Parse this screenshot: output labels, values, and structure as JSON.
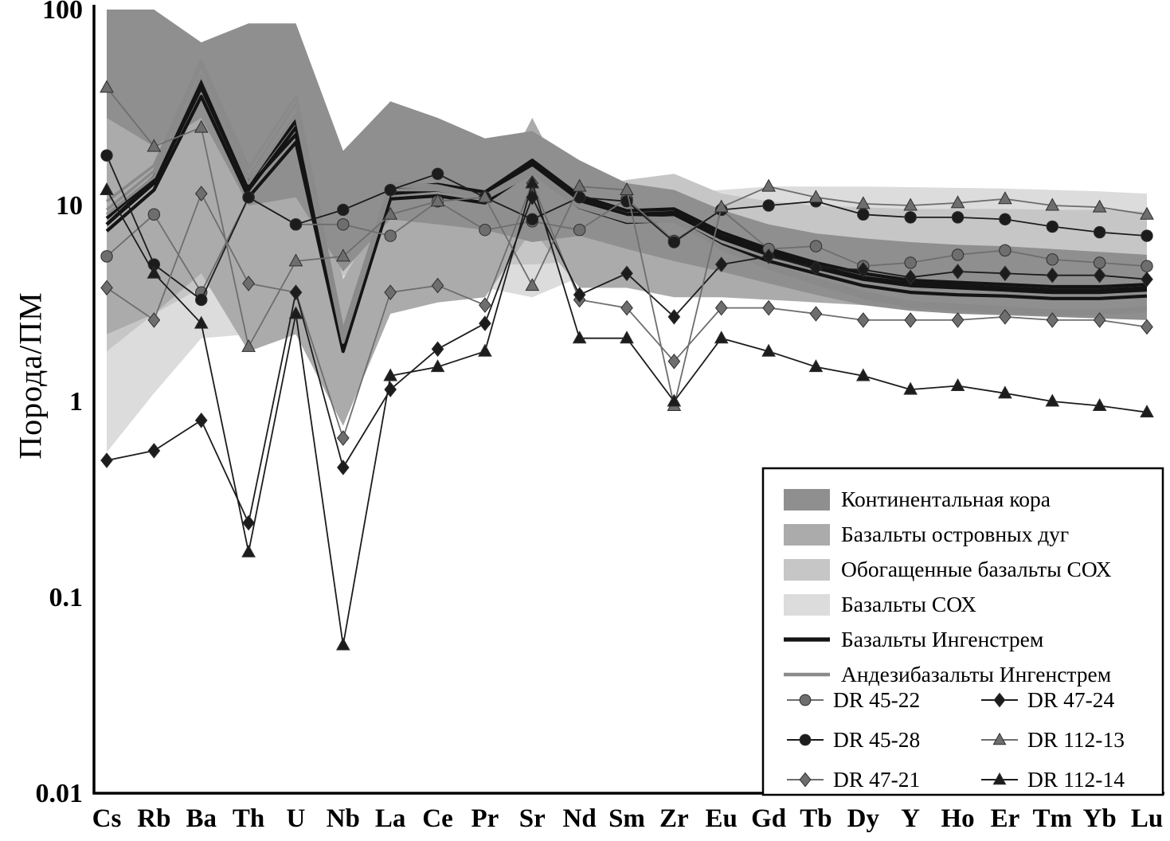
{
  "chart_data": {
    "type": "line",
    "subtype": "spider-diagram",
    "scale": "log",
    "ylabel": "Порода/ПМ",
    "xlabel": "",
    "title": "",
    "ylim": [
      0.01,
      100
    ],
    "grid": false,
    "legend_position": "bottom-right-inside",
    "yticks": [
      {
        "label": "100",
        "value": 100
      },
      {
        "label": "10",
        "value": 10
      },
      {
        "label": "1",
        "value": 1
      },
      {
        "label": "0.1",
        "value": 0.1
      },
      {
        "label": "0.01",
        "value": 0.01
      }
    ],
    "categories": [
      "Cs",
      "Rb",
      "Ba",
      "Th",
      "U",
      "Nb",
      "La",
      "Ce",
      "Pr",
      "Sr",
      "Nd",
      "Sm",
      "Zr",
      "Eu",
      "Gd",
      "Tb",
      "Dy",
      "Y",
      "Ho",
      "Er",
      "Tm",
      "Yb",
      "Lu"
    ],
    "fields": [
      {
        "name": "Континентальная кора",
        "color": "#8f8f8f",
        "upper": [
          120,
          100,
          68,
          85,
          85,
          19,
          34,
          28,
          22,
          24,
          17,
          13,
          12,
          9.5,
          8,
          7.2,
          6.8,
          6.5,
          6.3,
          6.2,
          6.0,
          5.8,
          5.6
        ],
        "lower": [
          28,
          20,
          28,
          10,
          11,
          4.6,
          8.5,
          8,
          7.5,
          6.5,
          7,
          6,
          5.2,
          4.6,
          4,
          3.5,
          3.1,
          2.9,
          2.8,
          2.75,
          2.7,
          2.65,
          2.6
        ]
      },
      {
        "name": "Базальты островных дуг",
        "color": "#ababab",
        "upper": [
          38,
          36,
          45,
          40,
          38,
          4.2,
          11,
          10,
          9.5,
          28,
          9.5,
          8,
          7.5,
          7,
          6.5,
          6,
          5.8,
          5.6,
          5.5,
          5.5,
          5.4,
          5.4,
          5.3
        ],
        "lower": [
          2.2,
          2.8,
          4.5,
          1.8,
          2.2,
          0.75,
          2.8,
          3.2,
          3.4,
          7.5,
          3.8,
          3.8,
          3.4,
          3.4,
          3.3,
          3.2,
          3.1,
          3.05,
          3.0,
          3.0,
          3.0,
          3.0,
          3.0
        ]
      },
      {
        "name": "Обогащенные базальты СОХ",
        "color": "#c6c6c6",
        "upper": [
          42,
          30,
          24,
          16,
          14,
          12,
          13,
          12.5,
          11.5,
          13.5,
          12,
          13.5,
          14.5,
          11.5,
          10.5,
          10,
          9.8,
          9.6,
          9.6,
          9.6,
          9.5,
          9.5,
          9.3
        ],
        "lower": [
          1.8,
          2.8,
          3.8,
          3.8,
          4,
          4.4,
          4.8,
          5,
          5,
          5,
          5.2,
          5.4,
          5.4,
          5.5,
          5.6,
          5.6,
          5.6,
          5.6,
          5.6,
          5.6,
          5.6,
          5.6,
          5.6
        ]
      },
      {
        "name": "Базальты СОХ",
        "color": "#dcdcdc",
        "upper": [
          34,
          24,
          14,
          11,
          10,
          8,
          7.5,
          8,
          8.5,
          9,
          9.5,
          10.5,
          11.5,
          12,
          12.5,
          12.5,
          12.5,
          12.4,
          12.3,
          12.2,
          12,
          11.8,
          11.5
        ],
        "lower": [
          0.55,
          1.1,
          2.1,
          2.2,
          2.4,
          2.6,
          3.0,
          3.4,
          3.8,
          3.4,
          4.3,
          4.8,
          4.9,
          5.2,
          5.8,
          5.9,
          6.0,
          6.0,
          6.0,
          6.0,
          6.0,
          5.9,
          5.9
        ]
      }
    ],
    "line_groups": [
      {
        "name": "Базальты Ингенстрем",
        "color": "#141414",
        "width": 4.2,
        "lines": [
          [
            8,
            13,
            40,
            12,
            25,
            2,
            11.5,
            12,
            11,
            16,
            10.5,
            8.8,
            9,
            6.8,
            5.6,
            4.8,
            4.2,
            3.9,
            3.8,
            3.7,
            3.6,
            3.6,
            3.7
          ],
          [
            7.4,
            12,
            36,
            11,
            21,
            1.8,
            10.8,
            11.2,
            10.3,
            15,
            9.8,
            8.2,
            8.4,
            6.3,
            5.2,
            4.5,
            3.9,
            3.6,
            3.5,
            3.45,
            3.35,
            3.35,
            3.45
          ],
          [
            8.6,
            14,
            44,
            13,
            27,
            2.2,
            12.2,
            12.8,
            11.7,
            17,
            11.2,
            9.4,
            9.6,
            7.3,
            6.0,
            5.1,
            4.5,
            4.15,
            4.05,
            3.95,
            3.85,
            3.85,
            3.95
          ],
          [
            8,
            13.5,
            41,
            12.5,
            23,
            1.9,
            11.8,
            12.3,
            11.2,
            16.5,
            10.8,
            9.0,
            9.2,
            7.0,
            5.8,
            4.9,
            4.3,
            4.0,
            3.9,
            3.8,
            3.7,
            3.7,
            3.8
          ]
        ]
      },
      {
        "name": "Андезибазальты Ингенстрем",
        "color": "#8a8a8a",
        "width": 3.6,
        "lines": [
          [
            9.5,
            15,
            52,
            14,
            33,
            2.1,
            12.5,
            12.3,
            11,
            15,
            10,
            8.5,
            8.5,
            6.2,
            5.0,
            4.2,
            3.6,
            3.2,
            3.1,
            3.0,
            2.9,
            2.9,
            3.0
          ],
          [
            10.5,
            16,
            55,
            15.5,
            36,
            2.3,
            13,
            12.6,
            11.2,
            15.5,
            10.2,
            8.7,
            8.6,
            6.0,
            4.8,
            4.0,
            3.4,
            3.05,
            2.95,
            2.85,
            2.8,
            2.8,
            2.9
          ],
          [
            9,
            14,
            46,
            13,
            29,
            2.0,
            12,
            12,
            10.8,
            14.5,
            9.8,
            8.3,
            8.3,
            6.1,
            4.9,
            4.1,
            3.5,
            3.15,
            3.05,
            2.95,
            2.9,
            2.9,
            2.95
          ]
        ]
      }
    ],
    "samples": [
      {
        "name": "DR 45-22",
        "marker": "circle",
        "color": "#6e6e6e",
        "values": [
          5.5,
          9,
          3.6,
          11,
          8,
          8,
          7,
          10.5,
          7.5,
          8.3,
          7.5,
          10.8,
          6.6,
          9.5,
          6,
          6.2,
          4.9,
          5.1,
          5.6,
          5.9,
          5.3,
          5.1,
          4.9
        ]
      },
      {
        "name": "DR 45-28",
        "marker": "circle",
        "color": "#1c1c1c",
        "values": [
          18,
          5,
          3.3,
          11,
          8,
          9.5,
          12,
          14.5,
          11,
          8.5,
          11,
          10.5,
          6.5,
          9.5,
          10,
          10.5,
          9,
          8.7,
          8.7,
          8.5,
          7.8,
          7.3,
          7
        ]
      },
      {
        "name": "DR 47-21",
        "marker": "diamond",
        "color": "#6e6e6e",
        "values": [
          3.8,
          2.6,
          11.5,
          4.0,
          3.6,
          0.65,
          3.6,
          3.9,
          3.1,
          13,
          3.3,
          3.0,
          1.6,
          3.0,
          3.0,
          2.8,
          2.6,
          2.6,
          2.6,
          2.7,
          2.6,
          2.6,
          2.4
        ]
      },
      {
        "name": "DR 47-24",
        "marker": "diamond",
        "color": "#1c1c1c",
        "values": [
          0.5,
          0.56,
          0.8,
          0.24,
          3.6,
          0.46,
          1.15,
          1.85,
          2.5,
          11,
          3.5,
          4.5,
          2.7,
          5.0,
          5.5,
          4.8,
          4.7,
          4.3,
          4.6,
          4.5,
          4.4,
          4.4,
          4.2
        ]
      },
      {
        "name": "DR 112-13",
        "marker": "triangle",
        "color": "#6e6e6e",
        "values": [
          40,
          20,
          25,
          1.9,
          5.2,
          5.5,
          9,
          10.5,
          11,
          3.9,
          12.5,
          12,
          0.95,
          9.8,
          12.5,
          11,
          10.2,
          10,
          10.3,
          10.8,
          10,
          9.8,
          9
        ]
      },
      {
        "name": "DR 112-14",
        "marker": "triangle",
        "color": "#1c1c1c",
        "values": [
          12,
          4.5,
          2.5,
          0.17,
          2.8,
          0.057,
          1.35,
          1.5,
          1.8,
          13,
          2.1,
          2.1,
          1.0,
          2.1,
          1.8,
          1.5,
          1.35,
          1.15,
          1.2,
          1.1,
          1.0,
          0.95,
          0.88
        ]
      }
    ],
    "legend": {
      "sample_pairs": [
        [
          "DR 45-22",
          "DR 47-24"
        ],
        [
          "DR 45-28",
          "DR 112-13"
        ],
        [
          "DR 47-21",
          "DR 112-14"
        ]
      ]
    }
  }
}
